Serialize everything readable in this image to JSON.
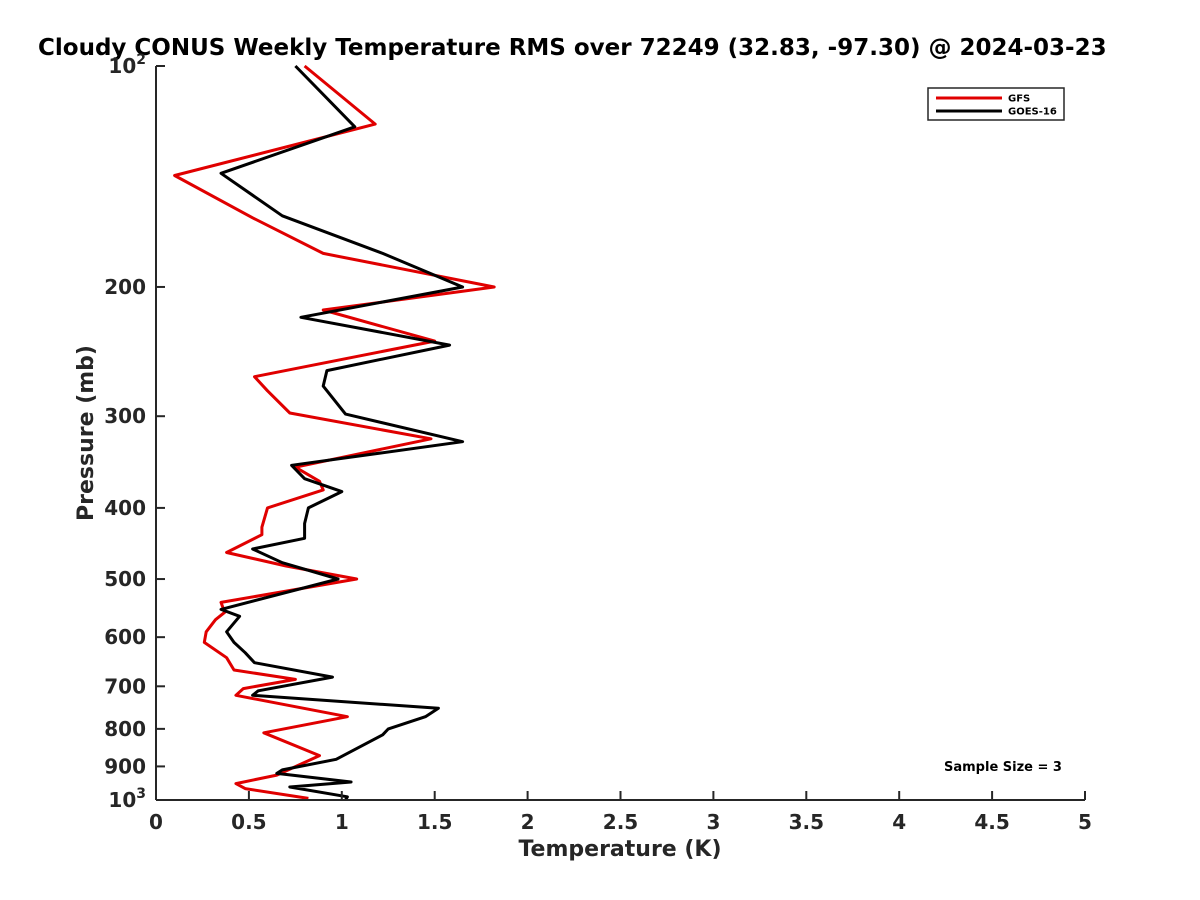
{
  "chart_data": {
    "type": "line",
    "title": "Cloudy CONUS Weekly Temperature RMS over 72249 (32.83, -97.30) @ 2024-03-23",
    "xlabel": "Temperature (K)",
    "ylabel": "Pressure (mb)",
    "xlim": [
      0,
      5
    ],
    "ylim": [
      100,
      1000
    ],
    "y_scale": "log",
    "y_reversed": true,
    "grid": false,
    "legend_position": "top-right",
    "x_ticks": [
      "0",
      "0.5",
      "1",
      "1.5",
      "2",
      "2.5",
      "3",
      "3.5",
      "4",
      "4.5",
      "5"
    ],
    "y_ticks": [
      {
        "value": 100,
        "label": "10",
        "sup": "2"
      },
      {
        "value": 200,
        "label": "200",
        "sup": ""
      },
      {
        "value": 300,
        "label": "300",
        "sup": ""
      },
      {
        "value": 400,
        "label": "400",
        "sup": ""
      },
      {
        "value": 500,
        "label": "500",
        "sup": ""
      },
      {
        "value": 600,
        "label": "600",
        "sup": ""
      },
      {
        "value": 700,
        "label": "700",
        "sup": ""
      },
      {
        "value": 800,
        "label": "800",
        "sup": ""
      },
      {
        "value": 900,
        "label": "900",
        "sup": ""
      },
      {
        "value": 1000,
        "label": "10",
        "sup": "3"
      }
    ],
    "annotation": "Sample Size = 3",
    "series": [
      {
        "name": "GFS",
        "color": "#e00000",
        "points": [
          [
            0.8,
            100
          ],
          [
            1.18,
            120
          ],
          [
            0.1,
            141
          ],
          [
            0.52,
            161
          ],
          [
            0.9,
            180
          ],
          [
            1.82,
            200
          ],
          [
            0.9,
            215
          ],
          [
            1.5,
            237
          ],
          [
            0.53,
            265
          ],
          [
            0.6,
            277
          ],
          [
            0.72,
            297
          ],
          [
            1.48,
            322
          ],
          [
            0.75,
            352
          ],
          [
            0.88,
            368
          ],
          [
            0.9,
            378
          ],
          [
            0.6,
            400
          ],
          [
            0.57,
            425
          ],
          [
            0.57,
            435
          ],
          [
            0.38,
            460
          ],
          [
            0.7,
            480
          ],
          [
            1.08,
            500
          ],
          [
            0.35,
            538
          ],
          [
            0.37,
            555
          ],
          [
            0.32,
            568
          ],
          [
            0.27,
            590
          ],
          [
            0.26,
            610
          ],
          [
            0.38,
            640
          ],
          [
            0.42,
            665
          ],
          [
            0.75,
            685
          ],
          [
            0.47,
            705
          ],
          [
            0.43,
            720
          ],
          [
            1.03,
            770
          ],
          [
            0.58,
            810
          ],
          [
            0.88,
            870
          ],
          [
            0.65,
            925
          ],
          [
            0.43,
            950
          ],
          [
            0.48,
            965
          ],
          [
            0.82,
            995
          ]
        ]
      },
      {
        "name": "GOES-16",
        "color": "#000000",
        "points": [
          [
            0.75,
            100
          ],
          [
            1.07,
            121
          ],
          [
            0.35,
            140
          ],
          [
            0.68,
            160
          ],
          [
            1.22,
            180
          ],
          [
            1.65,
            200
          ],
          [
            0.78,
            220
          ],
          [
            1.58,
            240
          ],
          [
            0.92,
            260
          ],
          [
            0.9,
            273
          ],
          [
            1.02,
            298
          ],
          [
            1.65,
            325
          ],
          [
            0.73,
            350
          ],
          [
            0.8,
            365
          ],
          [
            1.0,
            380
          ],
          [
            0.82,
            400
          ],
          [
            0.8,
            420
          ],
          [
            0.8,
            440
          ],
          [
            0.52,
            455
          ],
          [
            0.68,
            475
          ],
          [
            0.98,
            500
          ],
          [
            0.35,
            550
          ],
          [
            0.45,
            562
          ],
          [
            0.38,
            590
          ],
          [
            0.42,
            610
          ],
          [
            0.48,
            630
          ],
          [
            0.53,
            650
          ],
          [
            0.95,
            680
          ],
          [
            0.55,
            710
          ],
          [
            0.52,
            720
          ],
          [
            1.52,
            750
          ],
          [
            1.45,
            770
          ],
          [
            1.25,
            800
          ],
          [
            1.22,
            815
          ],
          [
            0.97,
            880
          ],
          [
            0.68,
            910
          ],
          [
            0.65,
            920
          ],
          [
            1.05,
            945
          ],
          [
            0.72,
            960
          ],
          [
            1.03,
            990
          ],
          [
            1.02,
            1000
          ]
        ]
      }
    ]
  }
}
